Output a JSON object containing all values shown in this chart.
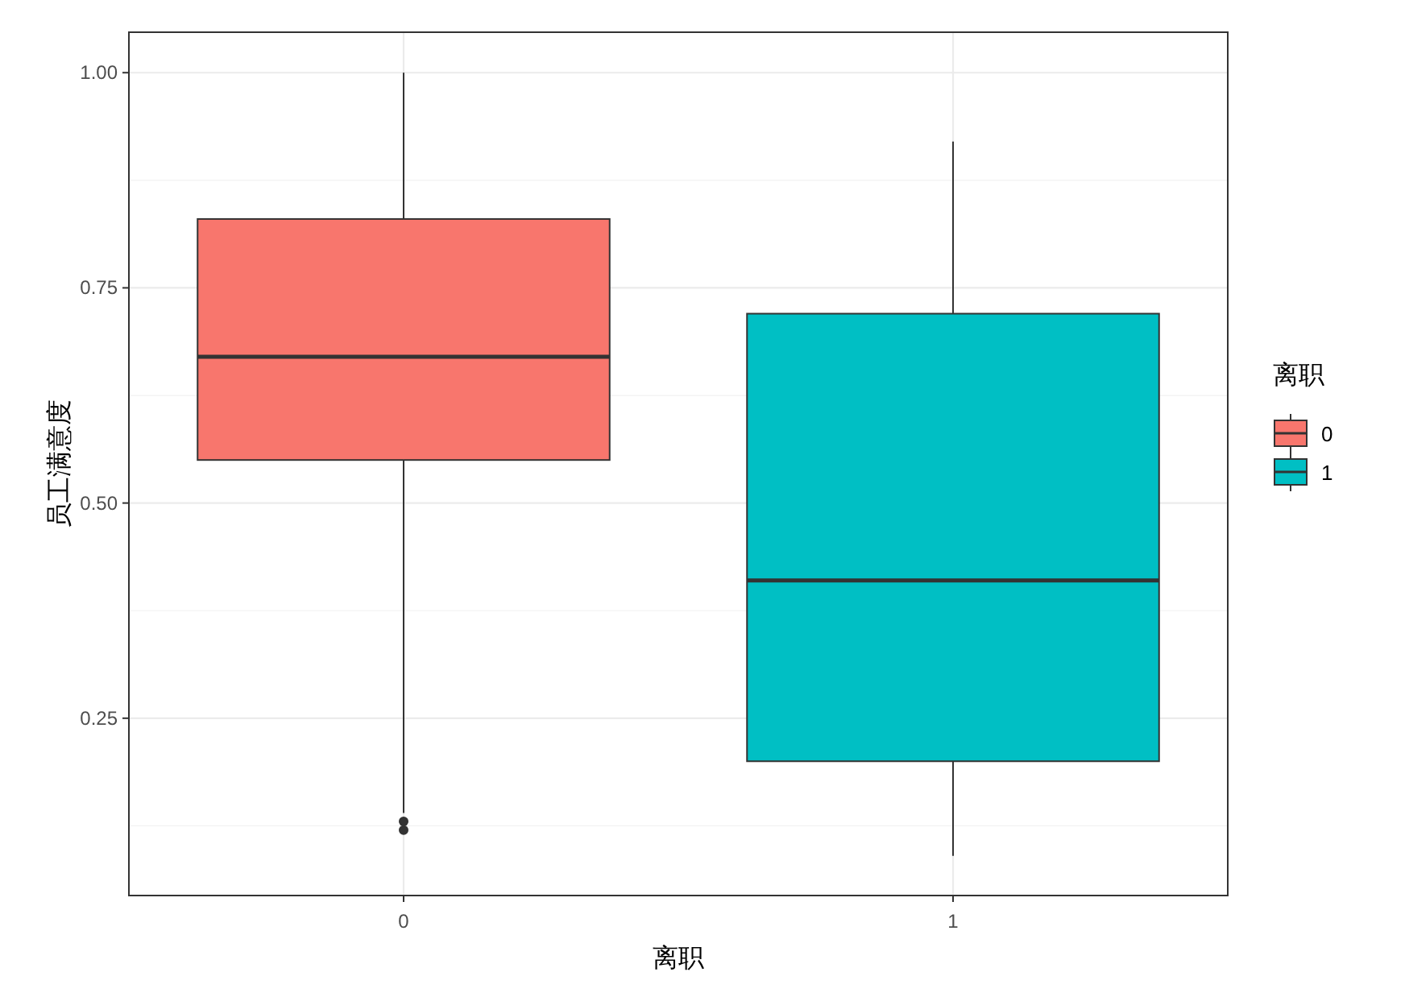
{
  "chart_data": {
    "type": "box",
    "xlabel": "离职",
    "ylabel": "员工满意度",
    "legend_title": "离职",
    "categories": [
      "0",
      "1"
    ],
    "series": [
      {
        "name": "0",
        "color": "#f8766d",
        "boxes": [
          {
            "low": 0.14,
            "q1": 0.55,
            "median": 0.67,
            "q3": 0.83,
            "high": 1.0,
            "outliers": [
              0.13,
              0.12
            ]
          },
          null
        ]
      },
      {
        "name": "1",
        "color": "#00bfc4",
        "boxes": [
          null,
          {
            "low": 0.09,
            "q1": 0.2,
            "median": 0.41,
            "q3": 0.72,
            "high": 0.92
          }
        ]
      }
    ],
    "ylim": [
      0.044,
      1.047
    ],
    "yticks": [
      {
        "value": 0.25,
        "label": "0.25"
      },
      {
        "value": 0.5,
        "label": "0.50"
      },
      {
        "value": 0.75,
        "label": "0.75"
      },
      {
        "value": 1.0,
        "label": "1.00"
      }
    ],
    "grid": true,
    "legend": "right"
  }
}
